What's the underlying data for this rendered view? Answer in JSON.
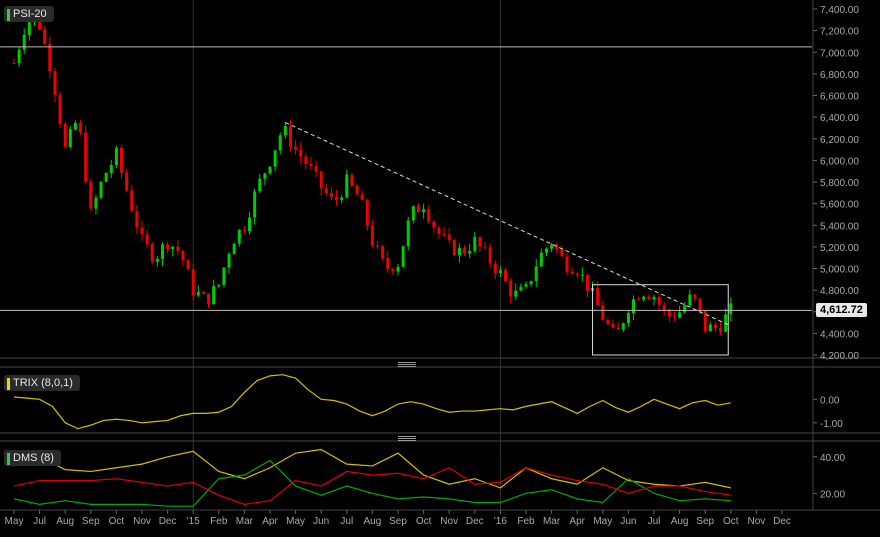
{
  "main_panel": {
    "label": "PSI-20",
    "label_color": "#2ecc40",
    "last_price_label": "4,612.72",
    "last_price": 4612.72,
    "y_ticks": [
      "7,400.00",
      "7,200.00",
      "7,000.00",
      "6,800.00",
      "6,600.00",
      "6,400.00",
      "6,200.00",
      "6,000.00",
      "5,800.00",
      "5,600.00",
      "5,400.00",
      "5,200.00",
      "5,000.00",
      "4,800.00",
      "4,600.00",
      "4,400.00",
      "4,200.00"
    ],
    "ylim": [
      4200,
      7400
    ],
    "reference_lines": [
      7050,
      4612.72
    ],
    "up_color": "#00cc00",
    "down_color": "#ee0000",
    "trendline": {
      "start": {
        "x": 10.6,
        "y": 6350
      },
      "end": {
        "x": 27.9,
        "y": 4480
      }
    },
    "range_box": {
      "x": [
        22.6,
        27.9
      ],
      "y": [
        4200,
        4850
      ]
    }
  },
  "trix_panel": {
    "label": "TRIX (8,0,1)",
    "label_color": "#e8d800",
    "y_ticks": [
      "0.00",
      "-1.00"
    ],
    "ylim": [
      -1.35,
      1.25
    ],
    "line_color": "#d4c000"
  },
  "dms_panel": {
    "label": "DMS (8)",
    "label_color": "#2ecc40",
    "y_ticks": [
      "40.00",
      "20.00"
    ],
    "ylim": [
      12,
      47
    ],
    "series_colors": {
      "adx": "#d4c000",
      "plus_di": "#00aa00",
      "minus_di": "#dd0000"
    }
  },
  "x_ticks": [
    "May",
    "Jul",
    "Aug",
    "Sep",
    "Oct",
    "Nov",
    "Dec",
    "'15",
    "Feb",
    "Mar",
    "Apr",
    "May",
    "Jun",
    "Jul",
    "Aug",
    "Sep",
    "Oct",
    "Nov",
    "Dec",
    "'16",
    "Feb",
    "Mar",
    "Apr",
    "May",
    "Jun",
    "Jul",
    "Aug",
    "Sep",
    "Oct",
    "Nov",
    "Dec"
  ],
  "chart_data": {
    "type": "candlestick",
    "title": "PSI-20",
    "x_tick_labels": [
      "May",
      "Jul",
      "Aug",
      "Sep",
      "Oct",
      "Nov",
      "Dec",
      "'15",
      "Feb",
      "Mar",
      "Apr",
      "May",
      "Jun",
      "Jul",
      "Aug",
      "Sep",
      "Oct",
      "Nov",
      "Dec",
      "'16",
      "Feb",
      "Mar",
      "Apr",
      "May",
      "Jun",
      "Jul",
      "Aug",
      "Sep",
      "Oct",
      "Nov",
      "Dec"
    ],
    "ylim": [
      4200,
      7400
    ],
    "close_path": {
      "x": [
        0,
        0.5,
        1,
        1.5,
        2,
        2.5,
        3,
        3.5,
        4,
        4.5,
        5,
        5.5,
        6,
        6.5,
        7,
        7.5,
        8,
        8.5,
        9,
        9.5,
        10,
        10.5,
        11,
        11.5,
        12,
        12.5,
        13,
        13.5,
        14,
        14.5,
        15,
        15.5,
        16,
        16.5,
        17,
        17.5,
        18,
        18.5,
        19,
        19.5,
        20,
        20.5,
        21,
        21.5,
        22,
        22.5,
        23,
        23.5,
        24,
        24.5,
        25,
        25.5,
        26,
        26.5,
        27,
        27.5,
        28
      ],
      "y": [
        6900,
        7300,
        7250,
        6800,
        6100,
        6400,
        5500,
        5850,
        6050,
        5650,
        5250,
        5100,
        5250,
        5150,
        4800,
        4700,
        4850,
        5250,
        5400,
        5750,
        6000,
        6300,
        6100,
        5950,
        5750,
        5600,
        5800,
        5650,
        5250,
        5000,
        5050,
        5500,
        5600,
        5350,
        5200,
        5150,
        5250,
        5100,
        4950,
        4750,
        4800,
        5100,
        5250,
        5050,
        5000,
        4800,
        4550,
        4350,
        4650,
        4800,
        4750,
        4550,
        4600,
        4750,
        4450,
        4450,
        4612.72
      ]
    },
    "trix": {
      "x": [
        0,
        0.5,
        1,
        1.5,
        2,
        2.5,
        3,
        3.5,
        4,
        4.5,
        5,
        5.5,
        6,
        6.5,
        7,
        7.5,
        8,
        8.5,
        9,
        9.5,
        10,
        10.5,
        11,
        11.5,
        12,
        12.5,
        13,
        13.5,
        14,
        14.5,
        15,
        15.5,
        16,
        16.5,
        17,
        17.5,
        18,
        18.5,
        19,
        19.5,
        20,
        20.5,
        21,
        21.5,
        22,
        22.5,
        23,
        23.5,
        24,
        24.5,
        25,
        25.5,
        26,
        26.5,
        27,
        27.5,
        28
      ],
      "y": [
        0.1,
        0.05,
        0,
        -0.3,
        -1.0,
        -1.25,
        -1.1,
        -0.9,
        -0.85,
        -0.9,
        -1.0,
        -0.95,
        -0.9,
        -0.7,
        -0.6,
        -0.6,
        -0.55,
        -0.3,
        0.3,
        0.8,
        1.0,
        1.05,
        0.9,
        0.4,
        0.0,
        -0.05,
        -0.2,
        -0.5,
        -0.7,
        -0.5,
        -0.2,
        -0.1,
        -0.2,
        -0.4,
        -0.55,
        -0.5,
        -0.5,
        -0.45,
        -0.4,
        -0.45,
        -0.3,
        -0.2,
        -0.1,
        -0.35,
        -0.6,
        -0.3,
        -0.05,
        -0.35,
        -0.55,
        -0.3,
        0.0,
        -0.2,
        -0.4,
        -0.15,
        -0.05,
        -0.25,
        -0.15
      ]
    },
    "dms": {
      "x": [
        0,
        1,
        2,
        3,
        4,
        5,
        6,
        7,
        8,
        9,
        10,
        11,
        12,
        13,
        14,
        15,
        16,
        17,
        18,
        19,
        20,
        21,
        22,
        23,
        24,
        25,
        26,
        27,
        28
      ],
      "adx": [
        36,
        40,
        33,
        32,
        34,
        36,
        40,
        43,
        32,
        28,
        34,
        42,
        44,
        36,
        35,
        42,
        30,
        25,
        28,
        23,
        34,
        28,
        25,
        34,
        27,
        25,
        24,
        26,
        23
      ],
      "plus_di": [
        17,
        14,
        16,
        14,
        14,
        14,
        13,
        13,
        28,
        30,
        38,
        24,
        19,
        24,
        20,
        17,
        18,
        17,
        15,
        15,
        20,
        22,
        17,
        15,
        28,
        20,
        16,
        17,
        16
      ],
      "minus_di": [
        24,
        27,
        27,
        27,
        28,
        26,
        24,
        26,
        19,
        14,
        16,
        27,
        24,
        32,
        30,
        31,
        28,
        34,
        25,
        26,
        34,
        30,
        27,
        25,
        20,
        24,
        24,
        21,
        19
      ]
    }
  }
}
